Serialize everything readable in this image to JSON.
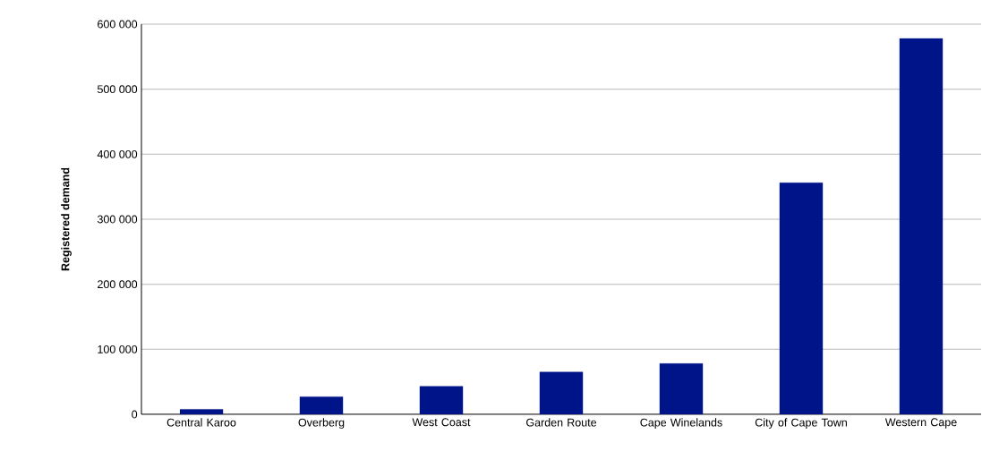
{
  "chart_data": {
    "type": "bar",
    "ylabel": "Registered demand",
    "categories": [
      "Central Karoo",
      "Overberg",
      "West Coast",
      "Garden Route",
      "Cape Winelands",
      "City of Cape Town",
      "Western Cape"
    ],
    "values": [
      7700,
      27000,
      43000,
      65000,
      78000,
      356000,
      578000
    ],
    "color": "#001489",
    "ylim": [
      0,
      600000
    ],
    "yticks": [
      {
        "value": 0,
        "label": "0"
      },
      {
        "value": 100000,
        "label": "100 000"
      },
      {
        "value": 200000,
        "label": "200 000"
      },
      {
        "value": 300000,
        "label": "300 000"
      },
      {
        "value": 400000,
        "label": "400 000"
      },
      {
        "value": 500000,
        "label": "500 000"
      },
      {
        "value": 600000,
        "label": "600 000"
      }
    ],
    "grid": "y"
  }
}
